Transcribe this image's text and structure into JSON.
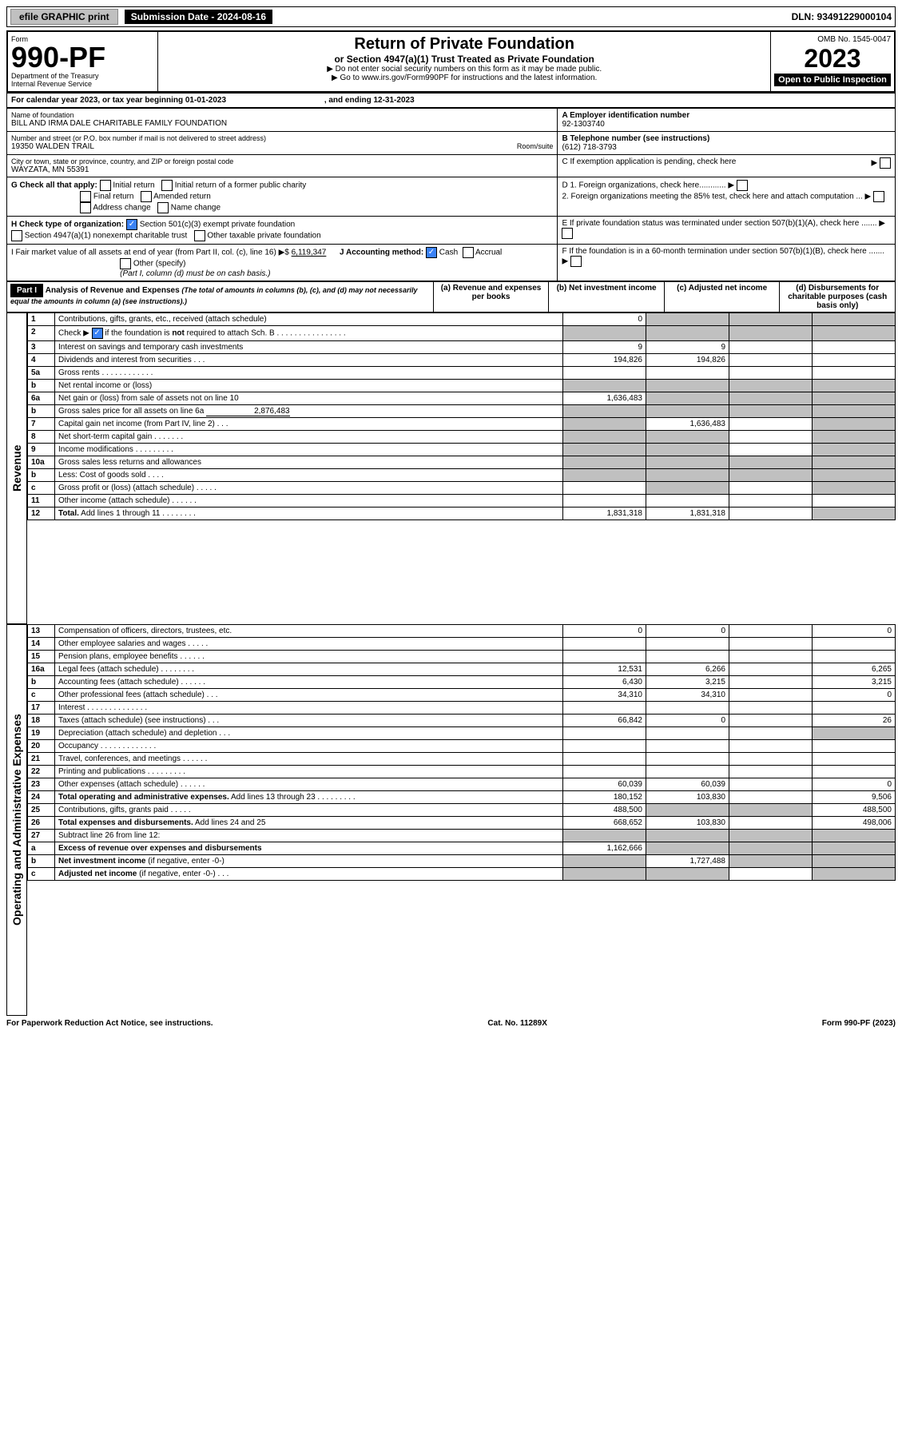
{
  "top": {
    "efile_btn": "efile GRAPHIC print",
    "sub_date_label": "Submission Date - 2024-08-16",
    "dln": "DLN: 93491229000104"
  },
  "header": {
    "form_label": "Form",
    "form_num": "990-PF",
    "dept": "Department of the Treasury",
    "irs": "Internal Revenue Service",
    "title": "Return of Private Foundation",
    "subtitle": "or Section 4947(a)(1) Trust Treated as Private Foundation",
    "note1": "▶ Do not enter social security numbers on this form as it may be made public.",
    "note2": "▶ Go to www.irs.gov/Form990PF for instructions and the latest information.",
    "omb": "OMB No. 1545-0047",
    "year": "2023",
    "open_pub": "Open to Public Inspection"
  },
  "cal": {
    "line": "For calendar year 2023, or tax year beginning 01-01-2023",
    "ending": ", and ending 12-31-2023"
  },
  "info": {
    "name_label": "Name of foundation",
    "name": "BILL AND IRMA DALE CHARITABLE FAMILY FOUNDATION",
    "addr_label": "Number and street (or P.O. box number if mail is not delivered to street address)",
    "addr": "19350 WALDEN TRAIL",
    "room_label": "Room/suite",
    "city_label": "City or town, state or province, country, and ZIP or foreign postal code",
    "city": "WAYZATA, MN  55391",
    "a_label": "A Employer identification number",
    "a_val": "92-1303740",
    "b_label": "B Telephone number (see instructions)",
    "b_val": "(612) 718-3793",
    "c_label": "C If exemption application is pending, check here",
    "d1": "D 1. Foreign organizations, check here............",
    "d2": "2. Foreign organizations meeting the 85% test, check here and attach computation ...",
    "e_label": "E  If private foundation status was terminated under section 507(b)(1)(A), check here .......",
    "f_label": "F  If the foundation is in a 60-month termination under section 507(b)(1)(B), check here .......",
    "g_label": "G Check all that apply:",
    "g_opts": [
      "Initial return",
      "Initial return of a former public charity",
      "Final return",
      "Amended return",
      "Address change",
      "Name change"
    ],
    "h_label": "H Check type of organization:",
    "h1": "Section 501(c)(3) exempt private foundation",
    "h2": "Section 4947(a)(1) nonexempt charitable trust",
    "h3": "Other taxable private foundation",
    "i_label": "I Fair market value of all assets at end of year (from Part II, col. (c), line 16) ▶$",
    "i_val": "6,119,347",
    "j_label": "J Accounting method:",
    "j_cash": "Cash",
    "j_accrual": "Accrual",
    "j_other": "Other (specify)",
    "j_note": "(Part I, column (d) must be on cash basis.)"
  },
  "part1": {
    "hdr": "Part I",
    "title": "Analysis of Revenue and Expenses",
    "note": "(The total of amounts in columns (b), (c), and (d) may not necessarily equal the amounts in column (a) (see instructions).)",
    "col_a": "(a)   Revenue and expenses per books",
    "col_b": "(b)   Net investment income",
    "col_c": "(c)   Adjusted net income",
    "col_d": "(d)   Disbursements for charitable purposes (cash basis only)"
  },
  "sidebars": {
    "revenue": "Revenue",
    "expenses": "Operating and Administrative Expenses"
  },
  "rows": {
    "r1": {
      "n": "1",
      "d": "",
      "a": "0",
      "b": "",
      "c": ""
    },
    "r2": {
      "n": "2",
      "d": "",
      "a": "",
      "b": "",
      "c": ""
    },
    "r3": {
      "n": "3",
      "d": "",
      "a": "9",
      "b": "9",
      "c": ""
    },
    "r4": {
      "n": "4",
      "d": "",
      "a": "194,826",
      "b": "194,826",
      "c": ""
    },
    "r5a": {
      "n": "5a",
      "d": "",
      "a": "",
      "b": "",
      "c": ""
    },
    "r5b": {
      "n": "b",
      "d": "",
      "a": "",
      "b": "",
      "c": ""
    },
    "r6a": {
      "n": "6a",
      "d": "",
      "a": "1,636,483",
      "b": "",
      "c": ""
    },
    "r6b": {
      "n": "b",
      "d": "",
      "sub": "2,876,483",
      "a": "",
      "b": "",
      "c": ""
    },
    "r7": {
      "n": "7",
      "d": "",
      "a": "",
      "b": "1,636,483",
      "c": ""
    },
    "r8": {
      "n": "8",
      "d": "",
      "a": "",
      "b": "",
      "c": ""
    },
    "r9": {
      "n": "9",
      "d": "",
      "a": "",
      "b": "",
      "c": ""
    },
    "r10a": {
      "n": "10a",
      "d": "",
      "a": "",
      "b": "",
      "c": ""
    },
    "r10b": {
      "n": "b",
      "d": "",
      "a": "",
      "b": "",
      "c": ""
    },
    "r10c": {
      "n": "c",
      "d": "",
      "a": "",
      "b": "",
      "c": ""
    },
    "r11": {
      "n": "11",
      "d": "",
      "a": "",
      "b": "",
      "c": ""
    },
    "r12": {
      "n": "12",
      "d": "",
      "a": "1,831,318",
      "b": "1,831,318",
      "c": ""
    },
    "r13": {
      "n": "13",
      "d": "0",
      "a": "0",
      "b": "0",
      "c": ""
    },
    "r14": {
      "n": "14",
      "d": "",
      "a": "",
      "b": "",
      "c": ""
    },
    "r15": {
      "n": "15",
      "d": "",
      "a": "",
      "b": "",
      "c": ""
    },
    "r16a": {
      "n": "16a",
      "d": "6,265",
      "a": "12,531",
      "b": "6,266",
      "c": ""
    },
    "r16b": {
      "n": "b",
      "d": "3,215",
      "a": "6,430",
      "b": "3,215",
      "c": ""
    },
    "r16c": {
      "n": "c",
      "d": "0",
      "a": "34,310",
      "b": "34,310",
      "c": ""
    },
    "r17": {
      "n": "17",
      "d": "",
      "a": "",
      "b": "",
      "c": ""
    },
    "r18": {
      "n": "18",
      "d": "26",
      "a": "66,842",
      "b": "0",
      "c": ""
    },
    "r19": {
      "n": "19",
      "d": "",
      "a": "",
      "b": "",
      "c": ""
    },
    "r20": {
      "n": "20",
      "d": "",
      "a": "",
      "b": "",
      "c": ""
    },
    "r21": {
      "n": "21",
      "d": "",
      "a": "",
      "b": "",
      "c": ""
    },
    "r22": {
      "n": "22",
      "d": "",
      "a": "",
      "b": "",
      "c": ""
    },
    "r23": {
      "n": "23",
      "d": "0",
      "a": "60,039",
      "b": "60,039",
      "c": ""
    },
    "r24": {
      "n": "24",
      "d": "9,506",
      "a": "180,152",
      "b": "103,830",
      "c": ""
    },
    "r25": {
      "n": "25",
      "d": "488,500",
      "a": "488,500",
      "b": "",
      "c": ""
    },
    "r26": {
      "n": "26",
      "d": "498,006",
      "a": "668,652",
      "b": "103,830",
      "c": ""
    },
    "r27": {
      "n": "27",
      "d": "",
      "a": "",
      "b": "",
      "c": ""
    },
    "r27a": {
      "n": "a",
      "d": "",
      "a": "1,162,666",
      "b": "",
      "c": ""
    },
    "r27b": {
      "n": "b",
      "d": "",
      "a": "",
      "b": "1,727,488",
      "c": ""
    },
    "r27c": {
      "n": "c",
      "d": "",
      "a": "",
      "b": "",
      "c": ""
    }
  },
  "footer": {
    "left": "For Paperwork Reduction Act Notice, see instructions.",
    "mid": "Cat. No. 11289X",
    "right": "Form 990-PF (2023)"
  }
}
